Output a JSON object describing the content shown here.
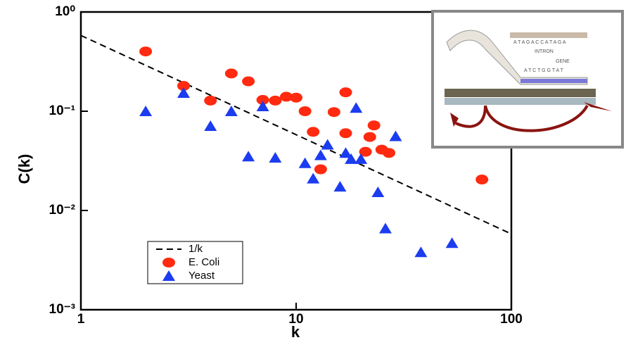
{
  "chart_data": {
    "type": "scatter",
    "xlabel": "k",
    "ylabel": "C(k)",
    "xscale": "log",
    "yscale": "log",
    "xlim": [
      1,
      100
    ],
    "ylim": [
      0.001,
      1
    ],
    "xticks": [
      1,
      10,
      100
    ],
    "yticks": [
      {
        "value": 1,
        "label": "10⁰"
      },
      {
        "value": 0.1,
        "label": "10⁻¹"
      },
      {
        "value": 0.01,
        "label": "10⁻²"
      },
      {
        "value": 0.001,
        "label": "10⁻³"
      }
    ],
    "legend": "lower left",
    "series": [
      {
        "name": "1/k",
        "color": "#000000",
        "marker": "none",
        "dashed": true,
        "x": [
          1,
          100
        ],
        "values": [
          0.58,
          0.0058
        ]
      },
      {
        "name": "E. Coli",
        "color": "#ff2a10",
        "marker": "circle",
        "x": [
          2,
          3,
          4,
          5,
          6,
          7,
          8,
          9,
          10,
          11,
          12,
          13,
          15,
          17,
          17,
          21,
          22,
          23,
          25,
          27,
          73
        ],
        "values": [
          0.4,
          0.18,
          0.128,
          0.24,
          0.2,
          0.13,
          0.128,
          0.14,
          0.137,
          0.1,
          0.062,
          0.026,
          0.098,
          0.06,
          0.155,
          0.039,
          0.055,
          0.072,
          0.041,
          0.038,
          0.0205
        ]
      },
      {
        "name": "Yeast",
        "color": "#1c3cf0",
        "marker": "triangle",
        "x": [
          2,
          3,
          4,
          5,
          6,
          7,
          8,
          11,
          12,
          13,
          14,
          16,
          17,
          18,
          19,
          20,
          24,
          26,
          29,
          38,
          53
        ],
        "values": [
          0.1,
          0.153,
          0.071,
          0.1,
          0.035,
          0.112,
          0.034,
          0.03,
          0.021,
          0.036,
          0.046,
          0.0174,
          0.038,
          0.033,
          0.108,
          0.033,
          0.0153,
          0.0066,
          0.056,
          0.0038,
          0.0047
        ]
      }
    ]
  },
  "inset": {
    "sequence_top": "A T A G A C C A T A G A",
    "intron": "INTRON",
    "gene": "GENE",
    "sequence_bottom": "A T C T G G T A T"
  }
}
